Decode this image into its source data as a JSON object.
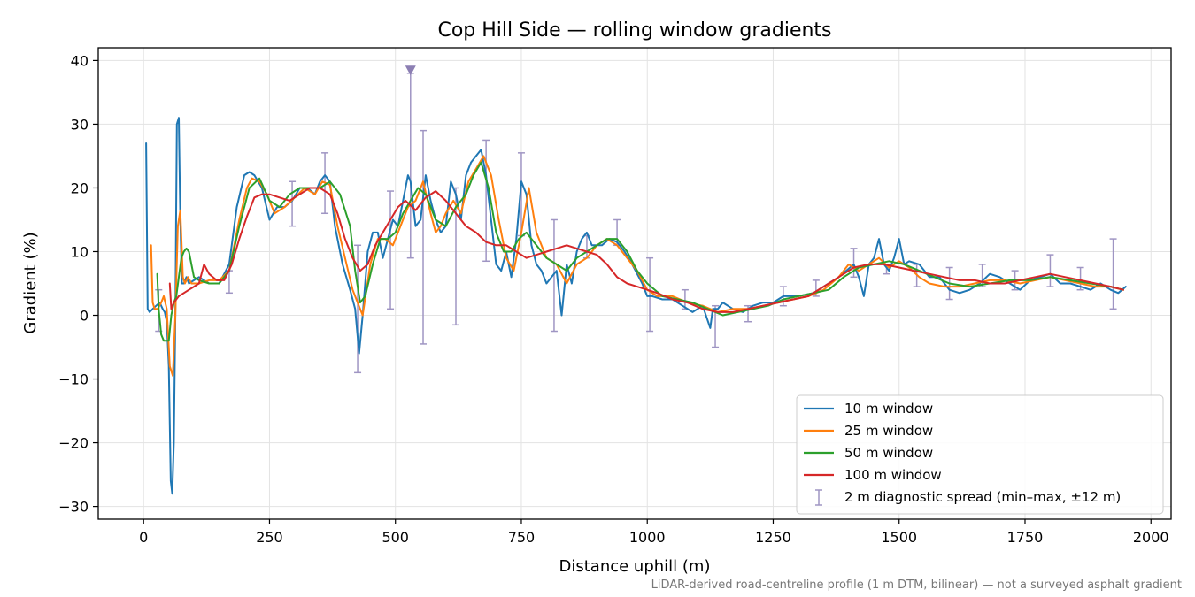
{
  "chart_data": {
    "type": "line",
    "title": "Cop Hill Side — rolling window gradients",
    "xlabel": "Distance uphill (m)",
    "ylabel": "Gradient (%)",
    "xlim": [
      -90,
      2040
    ],
    "ylim": [
      -32,
      42
    ],
    "x_ticks": [
      0,
      250,
      500,
      750,
      1000,
      1250,
      1500,
      1750,
      2000
    ],
    "y_ticks": [
      -30,
      -20,
      -10,
      0,
      10,
      20,
      30,
      40
    ],
    "x_tick_labels": [
      "0",
      "250",
      "500",
      "750",
      "1000",
      "1250",
      "1500",
      "1750",
      "2000"
    ],
    "y_tick_labels": [
      "−30",
      "−20",
      "−10",
      "0",
      "10",
      "20",
      "30",
      "40"
    ],
    "grid": true,
    "legend_position": "lower-right",
    "footnote": "LiDAR-derived road-centreline profile (1 m DTM, bilinear) — not a surveyed asphalt gradient",
    "series": [
      {
        "name": "10 m window",
        "color": "#1f77b4",
        "x": [
          5,
          8,
          12,
          18,
          25,
          32,
          38,
          42,
          46,
          50,
          54,
          57,
          60,
          63,
          66,
          70,
          73,
          76,
          80,
          85,
          90,
          100,
          110,
          130,
          150,
          170,
          185,
          200,
          210,
          220,
          235,
          250,
          265,
          280,
          295,
          310,
          325,
          340,
          350,
          360,
          370,
          380,
          395,
          410,
          420,
          428,
          435,
          445,
          455,
          465,
          475,
          485,
          495,
          505,
          515,
          525,
          530,
          540,
          550,
          560,
          570,
          580,
          590,
          600,
          610,
          620,
          630,
          640,
          650,
          660,
          670,
          680,
          690,
          700,
          710,
          720,
          730,
          740,
          750,
          760,
          770,
          780,
          790,
          800,
          810,
          820,
          830,
          840,
          850,
          860,
          870,
          880,
          890,
          900,
          910,
          925,
          940,
          955,
          970,
          990,
          1000,
          1010,
          1030,
          1050,
          1070,
          1090,
          1110,
          1125,
          1130,
          1140,
          1150,
          1170,
          1190,
          1210,
          1230,
          1250,
          1270,
          1300,
          1330,
          1360,
          1380,
          1395,
          1410,
          1420,
          1430,
          1440,
          1450,
          1460,
          1470,
          1480,
          1490,
          1500,
          1510,
          1520,
          1540,
          1560,
          1580,
          1600,
          1620,
          1640,
          1660,
          1680,
          1700,
          1720,
          1740,
          1760,
          1780,
          1800,
          1820,
          1840,
          1860,
          1880,
          1900,
          1920,
          1935,
          1950
        ],
        "values": [
          27,
          1,
          0.5,
          1,
          1.5,
          2,
          1,
          0.5,
          -1,
          -8,
          -26,
          -28,
          -20,
          0,
          30,
          31,
          15,
          5,
          5,
          6,
          5,
          5.5,
          6,
          5,
          5,
          8,
          17,
          22,
          22.5,
          22,
          20,
          15,
          17,
          17,
          18,
          20,
          20,
          19,
          21,
          22,
          21,
          14,
          8,
          4,
          1,
          -6,
          0,
          10,
          13,
          13,
          9,
          12,
          15,
          14,
          18,
          22,
          21,
          14,
          15,
          22,
          18,
          15,
          13,
          14,
          21,
          19,
          15,
          22,
          24,
          25,
          26,
          22,
          15,
          8,
          7,
          10,
          6,
          12,
          21,
          19,
          11,
          8,
          7,
          5,
          6,
          7,
          0,
          8,
          5,
          10,
          12,
          13,
          11,
          11,
          11,
          12,
          11.5,
          10,
          8,
          5,
          3,
          3,
          2.5,
          2.5,
          1.5,
          0.5,
          1.5,
          -2,
          1,
          1,
          2,
          1,
          0.5,
          1.5,
          2,
          2,
          3,
          3,
          3.5,
          5,
          6,
          7,
          8,
          6,
          3,
          8,
          9,
          12,
          8,
          7,
          9,
          12,
          8,
          8.5,
          8,
          6,
          6,
          4,
          3.5,
          4,
          5,
          6.5,
          6,
          5,
          4,
          5.5,
          6,
          6.5,
          5,
          5,
          4.5,
          4,
          5,
          4,
          3.5,
          4.5
        ]
      },
      {
        "name": "25 m window",
        "color": "#ff7f0e",
        "x": [
          15,
          18,
          22,
          28,
          35,
          40,
          46,
          52,
          58,
          63,
          68,
          73,
          78,
          82,
          88,
          95,
          110,
          130,
          150,
          170,
          190,
          205,
          215,
          230,
          245,
          260,
          280,
          300,
          320,
          340,
          355,
          370,
          385,
          400,
          415,
          425,
          435,
          450,
          465,
          480,
          495,
          510,
          525,
          540,
          555,
          570,
          580,
          590,
          600,
          615,
          630,
          645,
          660,
          675,
          690,
          705,
          720,
          735,
          750,
          765,
          780,
          800,
          820,
          840,
          860,
          880,
          900,
          920,
          940,
          960,
          980,
          1000,
          1020,
          1050,
          1080,
          1110,
          1140,
          1170,
          1200,
          1230,
          1260,
          1290,
          1320,
          1350,
          1380,
          1400,
          1420,
          1440,
          1460,
          1480,
          1500,
          1520,
          1540,
          1560,
          1590,
          1620,
          1650,
          1680,
          1710,
          1740,
          1770,
          1800,
          1830,
          1860,
          1890,
          1920,
          1945
        ],
        "values": [
          11,
          2,
          1,
          1,
          2,
          3,
          1,
          -8,
          -9.5,
          0,
          14,
          16.5,
          6,
          5,
          6,
          5,
          5,
          5.5,
          5.5,
          7,
          15,
          20,
          21.5,
          21,
          19,
          16,
          17,
          18.5,
          20,
          19,
          21,
          20.5,
          14,
          9,
          4,
          2,
          0,
          8,
          12,
          12,
          11,
          14,
          17,
          18,
          21,
          16,
          13,
          14,
          16,
          18,
          16,
          21,
          23,
          25,
          22,
          15,
          9,
          7,
          13,
          20,
          13,
          9,
          8,
          5,
          8,
          9,
          11,
          12,
          11,
          9,
          7,
          4,
          3,
          3,
          2,
          1.5,
          0.5,
          1,
          1,
          1.5,
          2,
          2.5,
          3,
          4,
          6,
          8,
          7,
          8,
          9,
          7.5,
          8.5,
          7.5,
          6,
          5,
          4.5,
          4.5,
          5,
          5.5,
          5.5,
          5,
          5.5,
          6,
          5.5,
          5,
          4.5,
          4.5,
          4
        ]
      },
      {
        "name": "50 m window",
        "color": "#2ca02c",
        "x": [
          27,
          30,
          35,
          40,
          45,
          50,
          55,
          60,
          65,
          70,
          75,
          80,
          85,
          90,
          100,
          110,
          130,
          150,
          170,
          190,
          210,
          230,
          250,
          270,
          290,
          310,
          330,
          350,
          370,
          390,
          410,
          420,
          430,
          440,
          455,
          470,
          485,
          500,
          515,
          530,
          545,
          560,
          580,
          600,
          620,
          640,
          655,
          670,
          685,
          700,
          715,
          730,
          745,
          760,
          780,
          800,
          820,
          840,
          860,
          880,
          900,
          920,
          940,
          960,
          980,
          1000,
          1030,
          1060,
          1090,
          1120,
          1150,
          1180,
          1210,
          1240,
          1270,
          1300,
          1330,
          1360,
          1390,
          1420,
          1450,
          1480,
          1510,
          1540,
          1570,
          1600,
          1640,
          1680,
          1720,
          1760,
          1800,
          1840,
          1880,
          1920,
          1945
        ],
        "values": [
          6.5,
          1,
          -3,
          -4,
          -4,
          -4,
          0,
          2,
          3,
          6,
          9,
          10,
          10.5,
          10,
          6,
          5.5,
          5,
          5,
          7,
          14,
          20,
          21.5,
          18,
          17,
          19,
          20,
          20,
          20,
          21,
          19,
          14,
          7,
          2,
          3,
          8,
          12,
          12,
          13,
          16,
          18,
          20,
          19,
          15,
          14,
          17,
          19,
          22,
          24,
          20,
          13,
          10,
          10,
          12,
          13,
          11,
          9,
          8,
          7,
          9,
          10,
          11,
          12,
          12,
          10,
          7,
          5,
          3,
          2.5,
          2,
          1,
          0,
          0.5,
          1,
          1.5,
          2.5,
          3,
          3.5,
          4,
          6,
          7.5,
          8,
          8.5,
          8,
          7,
          6,
          5,
          4.5,
          5,
          5.5,
          5.5,
          6,
          5.5,
          5,
          4.5,
          4
        ]
      },
      {
        "name": "100 m window",
        "color": "#d62728",
        "x": [
          52,
          55,
          60,
          65,
          70,
          80,
          90,
          100,
          110,
          120,
          130,
          145,
          160,
          175,
          190,
          205,
          220,
          235,
          250,
          270,
          290,
          310,
          330,
          350,
          370,
          385,
          400,
          415,
          430,
          445,
          460,
          475,
          490,
          505,
          520,
          540,
          560,
          580,
          600,
          620,
          640,
          660,
          680,
          700,
          720,
          740,
          760,
          780,
          800,
          820,
          840,
          860,
          880,
          900,
          920,
          940,
          960,
          980,
          1000,
          1020,
          1050,
          1080,
          1110,
          1140,
          1170,
          1200,
          1230,
          1260,
          1290,
          1320,
          1350,
          1380,
          1410,
          1440,
          1470,
          1500,
          1530,
          1560,
          1590,
          1620,
          1650,
          1680,
          1710,
          1740,
          1770,
          1800,
          1830,
          1860,
          1890,
          1920,
          1945
        ],
        "values": [
          5,
          1,
          2,
          2.5,
          3,
          3.5,
          4,
          4.5,
          5,
          8,
          6.5,
          5.5,
          5.5,
          8,
          12,
          15.5,
          18.5,
          19,
          19,
          18.5,
          18,
          19,
          20,
          20,
          19,
          16,
          12,
          9,
          7,
          8,
          11,
          13,
          15,
          17,
          18,
          16.5,
          18.5,
          19.5,
          18,
          16,
          14,
          13,
          11.5,
          11,
          11,
          10,
          9,
          9.5,
          10,
          10.5,
          11,
          10.5,
          10,
          9.5,
          8,
          6,
          5,
          4.5,
          4,
          3.5,
          2.5,
          2,
          1,
          0.5,
          0.5,
          1,
          1.5,
          2,
          2.5,
          3,
          4.5,
          6,
          7.5,
          8,
          8,
          7.5,
          7,
          6.5,
          6,
          5.5,
          5.5,
          5,
          5,
          5.5,
          6,
          6.5,
          6,
          5.5,
          5,
          4.5,
          4
        ]
      }
    ],
    "error_bars": {
      "name": "2 m diagnostic spread (min–max, ±12 m)",
      "color": "#9f95c3",
      "x": [
        30,
        170,
        295,
        360,
        425,
        490,
        530,
        555,
        620,
        680,
        750,
        815,
        880,
        940,
        1005,
        1075,
        1135,
        1200,
        1270,
        1335,
        1410,
        1475,
        1535,
        1600,
        1665,
        1730,
        1800,
        1860,
        1925
      ],
      "low": [
        -2.5,
        3.5,
        14,
        16,
        -9,
        1,
        9,
        -4.5,
        -1.5,
        8.5,
        12.5,
        -2.5,
        9,
        11,
        -2.5,
        1,
        -5,
        -1,
        1.5,
        3,
        6,
        6.5,
        4.5,
        2.5,
        4.5,
        4,
        4.5,
        4,
        1
      ],
      "high": [
        4,
        7,
        21,
        25.5,
        11,
        19.5,
        38,
        29,
        20,
        27.5,
        25.5,
        15,
        12.5,
        15,
        9,
        4,
        1.5,
        1.5,
        4.5,
        5.5,
        10.5,
        8,
        8,
        7.5,
        8,
        7,
        9.5,
        7.5,
        12
      ],
      "marker_x": 530,
      "marker_y": 38.5
    }
  }
}
